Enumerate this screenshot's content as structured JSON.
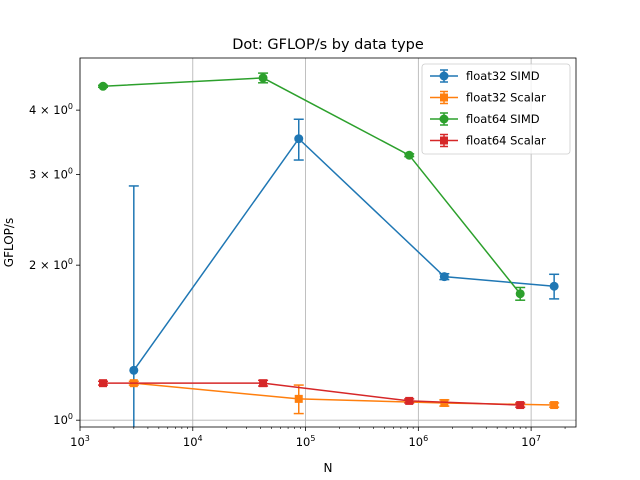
{
  "chart_data": {
    "type": "line",
    "title": "Dot: GFLOP/s by data type",
    "xlabel": "N",
    "ylabel": "GFLOP/s",
    "xscale": "log",
    "yscale": "log",
    "xlim": [
      1000,
      25000000
    ],
    "ylim": [
      0.97,
      5.05
    ],
    "x_ticks": [
      {
        "value": 1000,
        "base": "10",
        "exp": "3"
      },
      {
        "value": 10000,
        "base": "10",
        "exp": "4"
      },
      {
        "value": 100000,
        "base": "10",
        "exp": "5"
      },
      {
        "value": 1000000,
        "base": "10",
        "exp": "6"
      },
      {
        "value": 10000000,
        "base": "10",
        "exp": "7"
      }
    ],
    "y_ticks": [
      {
        "value": 1,
        "mant": "10",
        "exp": "0"
      },
      {
        "value": 2,
        "mant": "2 × 10",
        "exp": "0"
      },
      {
        "value": 3,
        "mant": "3 × 10",
        "exp": "0"
      },
      {
        "value": 4,
        "mant": "4 × 10",
        "exp": "0"
      }
    ],
    "grid": "x-major",
    "legend_position": "upper-right",
    "series": [
      {
        "name": "float32 SIMD",
        "color": "#1f77b4",
        "marker": "circle",
        "x": [
          3000,
          87000,
          1700000,
          16000000
        ],
        "y": [
          1.25,
          3.52,
          1.9,
          1.82
        ],
        "err": [
          1.6,
          0.32,
          0.025,
          0.1
        ]
      },
      {
        "name": "float32 Scalar",
        "color": "#ff7f0e",
        "marker": "square",
        "x": [
          3000,
          87000,
          1700000,
          16000000
        ],
        "y": [
          1.18,
          1.1,
          1.08,
          1.07
        ],
        "err": [
          0.01,
          0.07,
          0.015,
          0.01
        ]
      },
      {
        "name": "float64 SIMD",
        "color": "#2ca02c",
        "marker": "circle",
        "x": [
          1600,
          42000,
          830000,
          8000000
        ],
        "y": [
          4.45,
          4.62,
          3.27,
          1.76
        ],
        "err": [
          0.02,
          0.1,
          0.02,
          0.05
        ]
      },
      {
        "name": "float64 Scalar",
        "color": "#d62728",
        "marker": "square",
        "x": [
          1600,
          42000,
          830000,
          8000000
        ],
        "y": [
          1.18,
          1.18,
          1.09,
          1.07
        ],
        "err": [
          0.01,
          0.015,
          0.01,
          0.01
        ]
      }
    ]
  }
}
